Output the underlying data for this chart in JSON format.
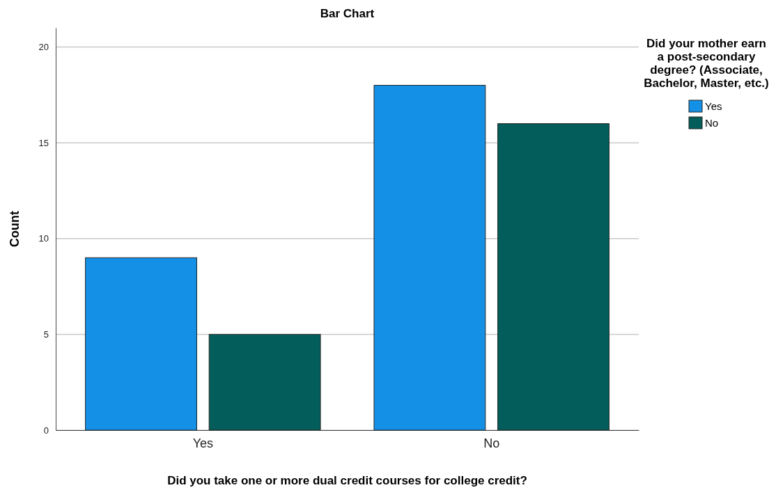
{
  "chart_data": {
    "type": "bar",
    "title": "Bar Chart",
    "xlabel": "Did you take one or more dual credit courses for college credit?",
    "ylabel": "Count",
    "legend_title": "Did your mother earn a post-secondary degree? (Associate, Bachelor, Master, etc.)",
    "categories": [
      "Yes",
      "No"
    ],
    "series": [
      {
        "name": "Yes",
        "color": "#1491e6",
        "values": [
          9,
          18
        ]
      },
      {
        "name": "No",
        "color": "#035e5b",
        "values": [
          5,
          16
        ]
      }
    ],
    "ylim": [
      0,
      21
    ],
    "yticks": [
      0,
      5,
      10,
      15,
      20
    ],
    "grid": "y",
    "legend": "top right"
  }
}
